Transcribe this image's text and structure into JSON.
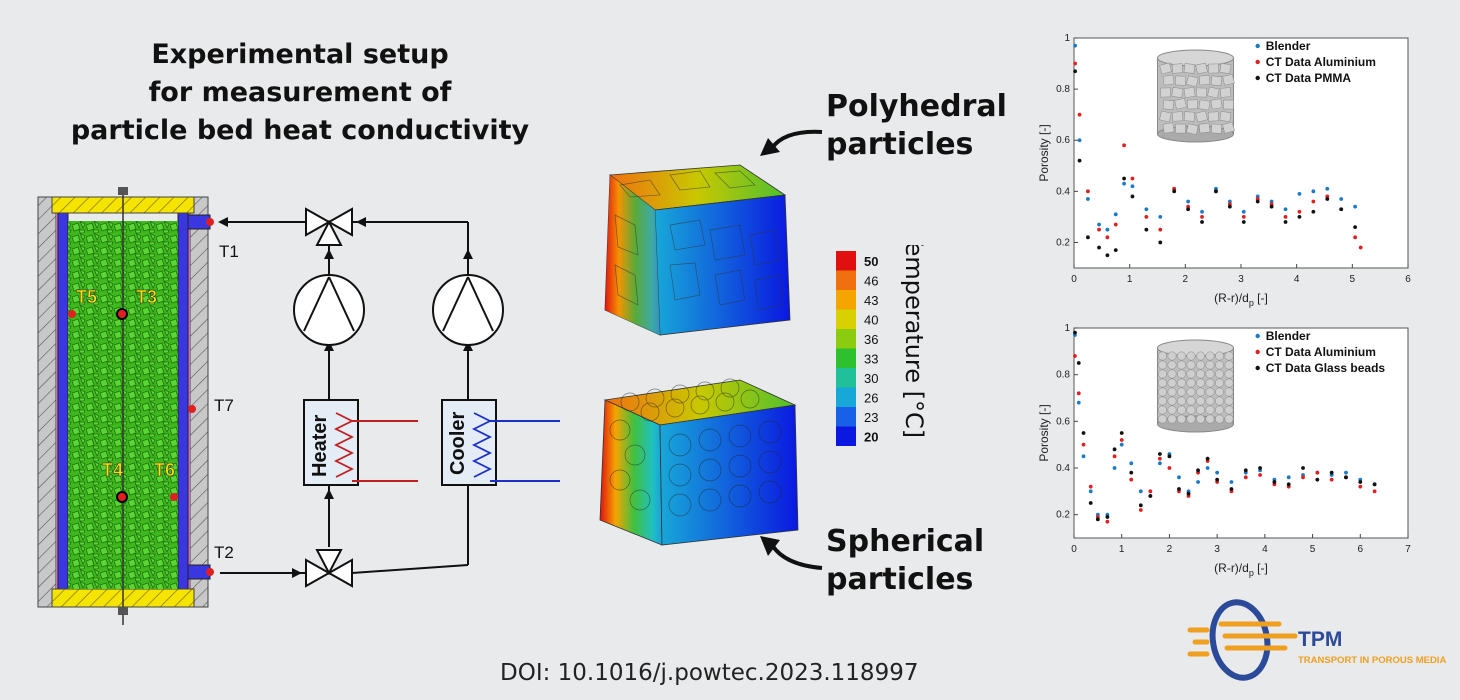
{
  "title": {
    "line1": "Experimental setup",
    "line2": "for measurement of",
    "line3": "particle bed heat conductivity"
  },
  "setup": {
    "sensors": [
      "T1",
      "T2",
      "T3",
      "T4",
      "T5",
      "T6",
      "T7"
    ],
    "heater_label": "Heater",
    "cooler_label": "Cooler"
  },
  "cubes": {
    "polyhedral_line1": "Polyhedral",
    "polyhedral_line2": "particles",
    "spherical_line1": "Spherical",
    "spherical_line2": "particles"
  },
  "colorbar": {
    "title": "Temperature [°C]",
    "ticks": [
      "50",
      "46",
      "43",
      "40",
      "36",
      "33",
      "30",
      "26",
      "23",
      "20"
    ],
    "colors": [
      "#e01010",
      "#f07010",
      "#f5a500",
      "#d8d000",
      "#8ccc10",
      "#2ec02e",
      "#20c09a",
      "#18a8d8",
      "#1860e8",
      "#0a18e0"
    ]
  },
  "chart_data": [
    {
      "type": "scatter",
      "xlabel": "(R-r)/d",
      "xlabel_sub": "p",
      "xlabel_unit": " [-]",
      "ylabel": "Porosity [-]",
      "xlim": [
        0,
        6
      ],
      "ylim": [
        0.1,
        1.0
      ],
      "xticks": [
        "0",
        "1",
        "2",
        "3",
        "4",
        "5",
        "6"
      ],
      "yticks": [
        "0.2",
        "0.4",
        "0.6",
        "0.8",
        "1"
      ],
      "series": [
        {
          "name": "Blender",
          "color": "#1a7ac8",
          "x": [
            0.02,
            0.1,
            0.25,
            0.45,
            0.6,
            0.75,
            0.9,
            1.05,
            1.3,
            1.55,
            1.8,
            2.05,
            2.3,
            2.55,
            2.8,
            3.05,
            3.3,
            3.55,
            3.8,
            4.05,
            4.3,
            4.55,
            4.8,
            5.05
          ],
          "y": [
            0.97,
            0.6,
            0.37,
            0.27,
            0.25,
            0.31,
            0.43,
            0.42,
            0.33,
            0.3,
            0.41,
            0.36,
            0.32,
            0.41,
            0.36,
            0.32,
            0.38,
            0.36,
            0.33,
            0.39,
            0.4,
            0.41,
            0.37,
            0.34
          ]
        },
        {
          "name": "CT Data Aluminium",
          "color": "#e02020",
          "x": [
            0.02,
            0.1,
            0.25,
            0.45,
            0.6,
            0.75,
            0.9,
            1.05,
            1.3,
            1.55,
            1.8,
            2.05,
            2.3,
            2.55,
            2.8,
            3.05,
            3.3,
            3.55,
            3.8,
            4.05,
            4.3,
            4.55,
            4.8,
            5.05,
            5.15
          ],
          "y": [
            0.9,
            0.7,
            0.4,
            0.25,
            0.22,
            0.27,
            0.58,
            0.45,
            0.3,
            0.25,
            0.41,
            0.34,
            0.3,
            0.4,
            0.35,
            0.3,
            0.37,
            0.35,
            0.3,
            0.32,
            0.36,
            0.38,
            0.33,
            0.22,
            0.18
          ]
        },
        {
          "name": "CT Data PMMA",
          "color": "#111111",
          "x": [
            0.02,
            0.1,
            0.25,
            0.45,
            0.6,
            0.75,
            0.9,
            1.05,
            1.3,
            1.55,
            1.8,
            2.05,
            2.3,
            2.55,
            2.8,
            3.05,
            3.3,
            3.55,
            3.8,
            4.05,
            4.3,
            4.55,
            4.8,
            5.05
          ],
          "y": [
            0.87,
            0.52,
            0.22,
            0.18,
            0.15,
            0.17,
            0.45,
            0.38,
            0.25,
            0.2,
            0.4,
            0.33,
            0.28,
            0.4,
            0.34,
            0.28,
            0.36,
            0.34,
            0.28,
            0.3,
            0.32,
            0.37,
            0.33,
            0.26
          ]
        }
      ],
      "inset": "cylinder-polyhedral"
    },
    {
      "type": "scatter",
      "xlabel": "(R-r)/d",
      "xlabel_sub": "p",
      "xlabel_unit": " [-]",
      "ylabel": "Porosity [-]",
      "xlim": [
        0,
        7
      ],
      "ylim": [
        0.1,
        1.0
      ],
      "xticks": [
        "0",
        "1",
        "2",
        "3",
        "4",
        "5",
        "6",
        "7"
      ],
      "yticks": [
        "0.2",
        "0.4",
        "0.6",
        "0.8",
        "1"
      ],
      "series": [
        {
          "name": "Blender",
          "color": "#1a7ac8",
          "x": [
            0.02,
            0.1,
            0.2,
            0.35,
            0.5,
            0.7,
            0.85,
            1.0,
            1.2,
            1.4,
            1.6,
            1.8,
            2.0,
            2.2,
            2.4,
            2.6,
            2.8,
            3.0,
            3.3,
            3.6,
            3.9,
            4.2,
            4.5,
            4.8,
            5.1,
            5.4,
            5.7,
            6.0,
            6.3
          ],
          "y": [
            0.97,
            0.68,
            0.45,
            0.3,
            0.2,
            0.2,
            0.4,
            0.5,
            0.42,
            0.3,
            0.28,
            0.42,
            0.46,
            0.36,
            0.3,
            0.34,
            0.4,
            0.38,
            0.34,
            0.38,
            0.39,
            0.35,
            0.36,
            0.37,
            0.38,
            0.37,
            0.38,
            0.35,
            0.33
          ]
        },
        {
          "name": "CT Data Aluminium",
          "color": "#e02020",
          "x": [
            0.02,
            0.1,
            0.2,
            0.35,
            0.5,
            0.7,
            0.85,
            1.0,
            1.2,
            1.4,
            1.6,
            1.8,
            2.0,
            2.2,
            2.4,
            2.6,
            2.8,
            3.0,
            3.3,
            3.6,
            3.9,
            4.2,
            4.5,
            4.8,
            5.1,
            5.4,
            5.7,
            6.0,
            6.3
          ],
          "y": [
            0.88,
            0.72,
            0.5,
            0.32,
            0.19,
            0.17,
            0.45,
            0.52,
            0.35,
            0.22,
            0.3,
            0.44,
            0.4,
            0.3,
            0.28,
            0.38,
            0.43,
            0.34,
            0.3,
            0.36,
            0.37,
            0.33,
            0.32,
            0.36,
            0.38,
            0.35,
            0.36,
            0.32,
            0.3
          ]
        },
        {
          "name": "CT Data Glass beads",
          "color": "#111111",
          "x": [
            0.02,
            0.1,
            0.2,
            0.35,
            0.5,
            0.7,
            0.85,
            1.0,
            1.2,
            1.4,
            1.6,
            1.8,
            2.0,
            2.2,
            2.4,
            2.6,
            2.8,
            3.0,
            3.3,
            3.6,
            3.9,
            4.2,
            4.5,
            4.8,
            5.1,
            5.4,
            5.7,
            6.0,
            6.3
          ],
          "y": [
            0.98,
            0.85,
            0.55,
            0.25,
            0.18,
            0.19,
            0.48,
            0.55,
            0.38,
            0.24,
            0.28,
            0.46,
            0.45,
            0.31,
            0.29,
            0.39,
            0.44,
            0.35,
            0.31,
            0.39,
            0.4,
            0.34,
            0.33,
            0.4,
            0.35,
            0.38,
            0.36,
            0.34,
            0.33
          ]
        }
      ],
      "inset": "cylinder-spheres"
    }
  ],
  "logo": {
    "name": "TPM",
    "tagline": "TRANSPORT IN POROUS MEDIA"
  },
  "doi": "DOI: 10.1016/j.powtec.2023.118997"
}
